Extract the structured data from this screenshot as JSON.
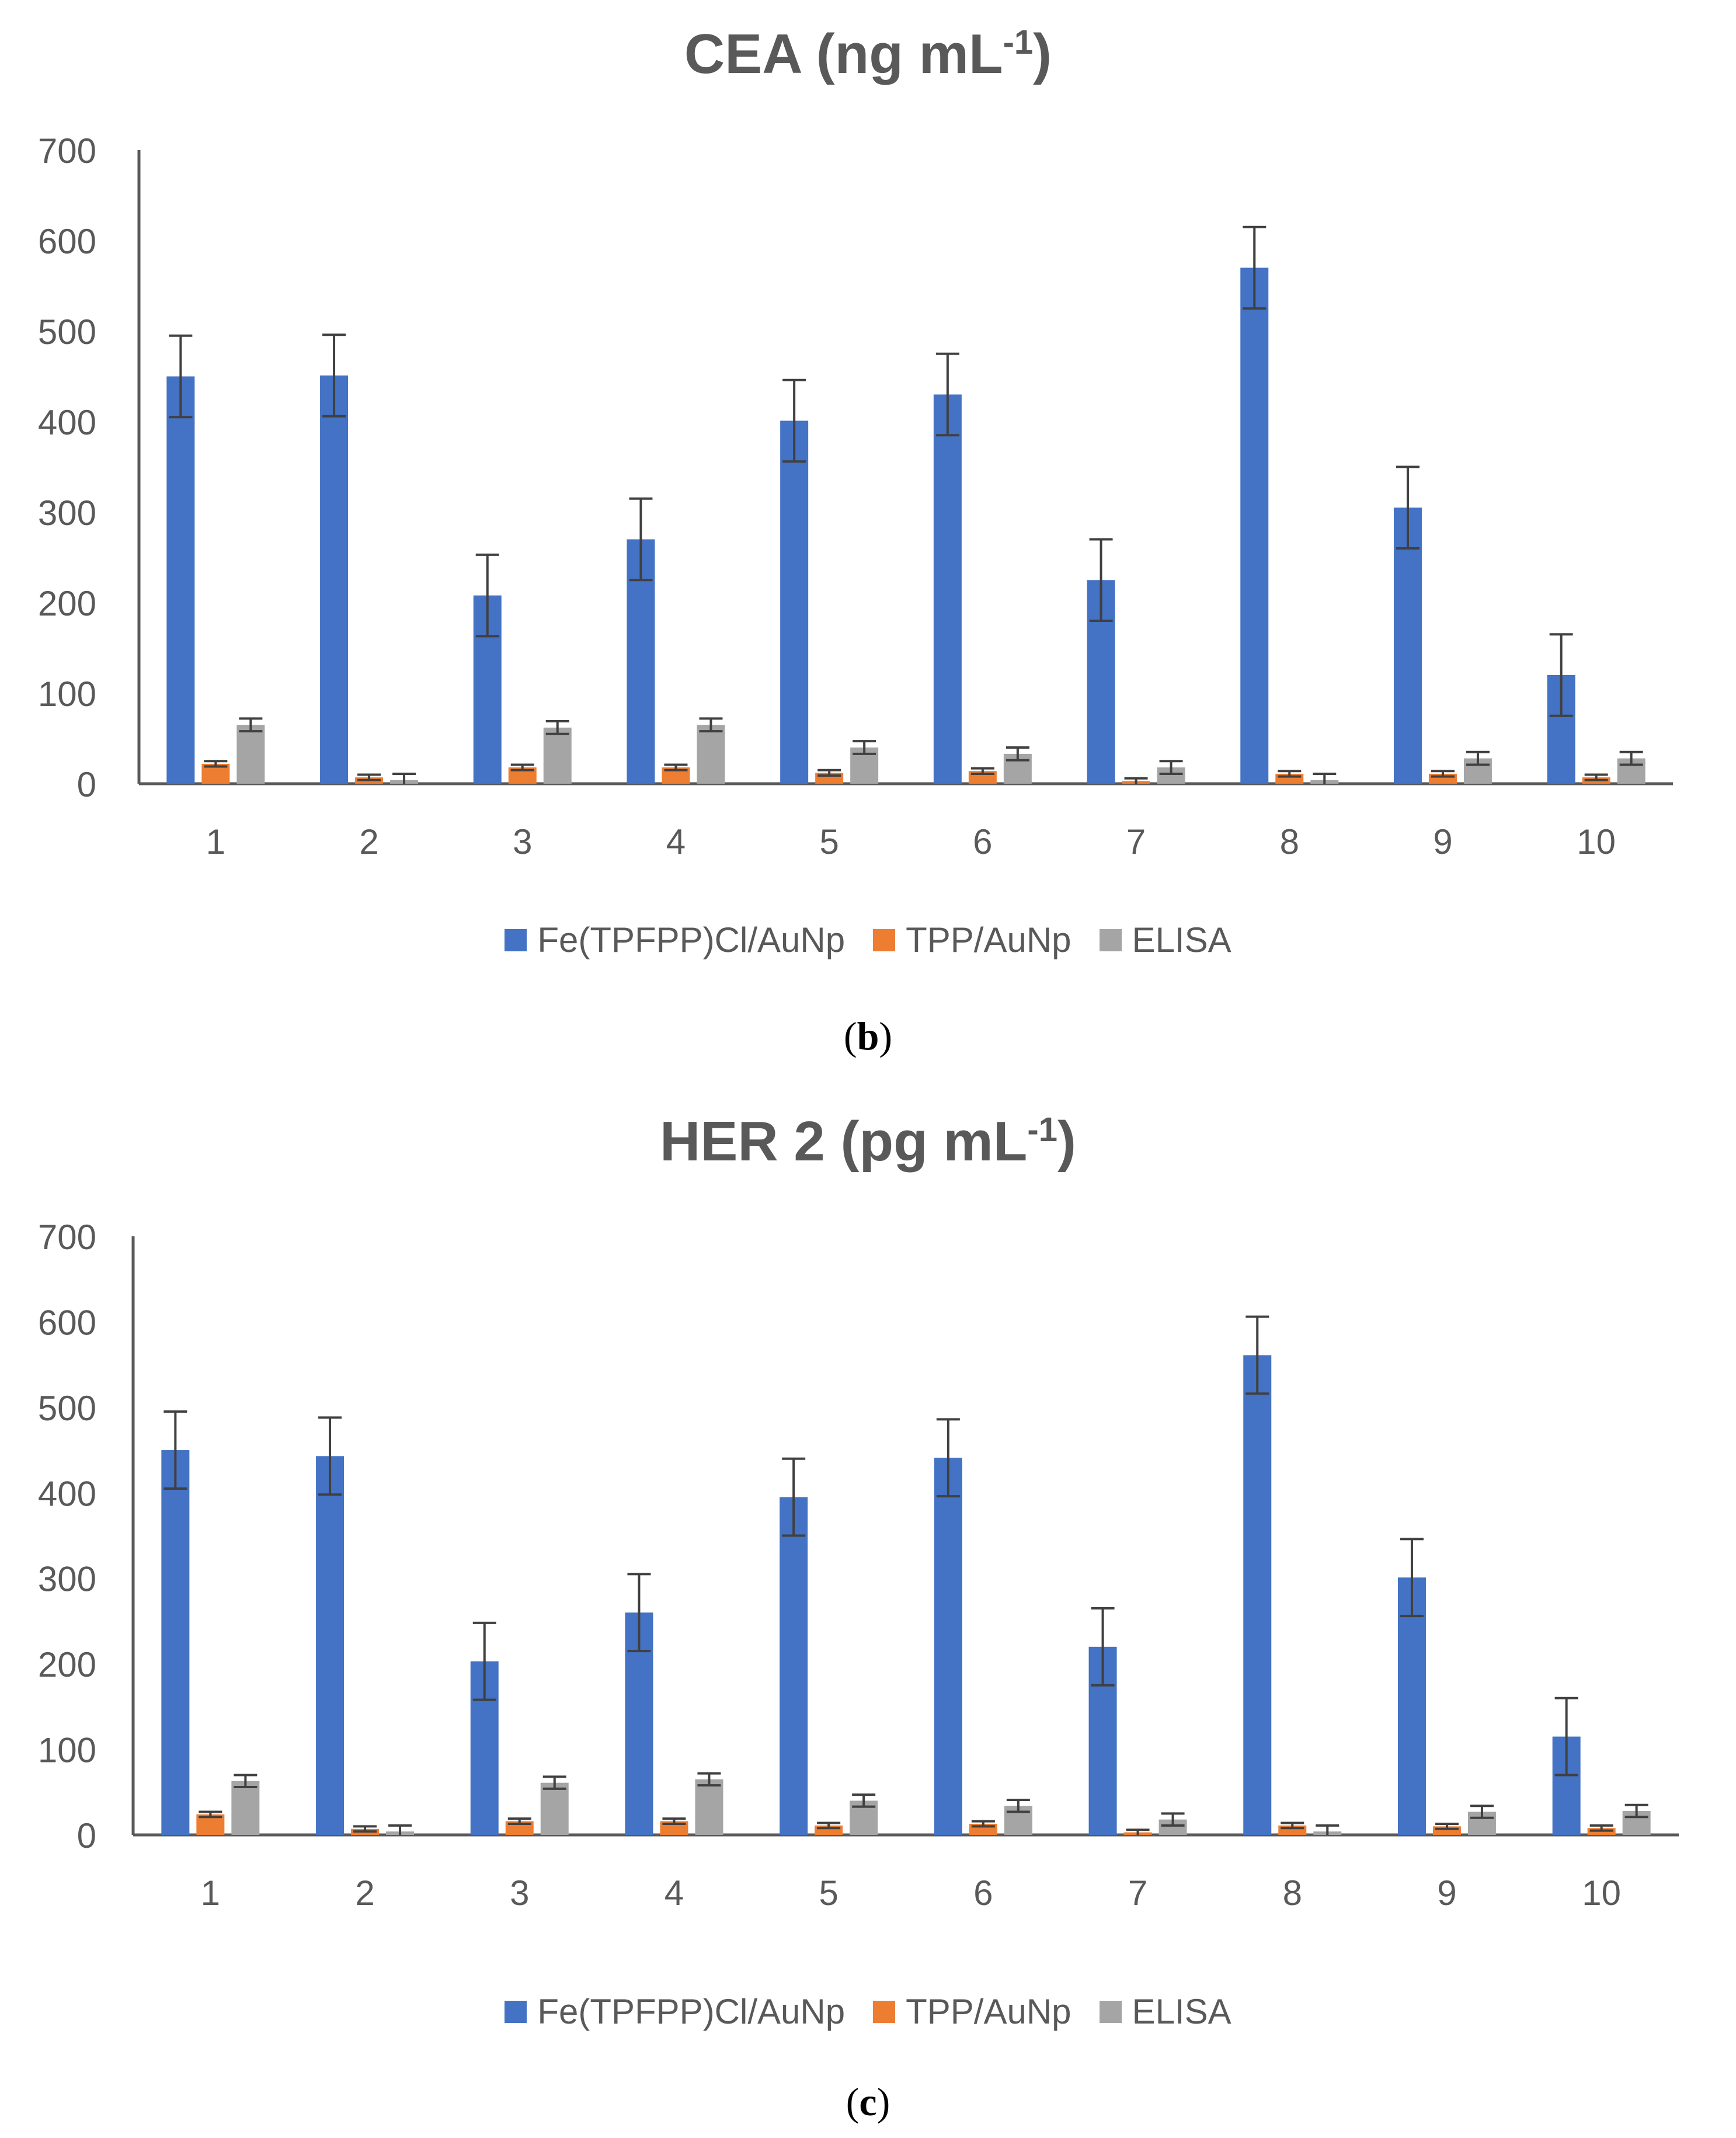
{
  "colors": {
    "fe": "#4472C4",
    "tpp": "#ED7D31",
    "elisa": "#A5A5A5",
    "axis": "#595959",
    "error": "#404040"
  },
  "legend": {
    "fe": "Fe(TPFPP)Cl/AuNp",
    "tpp": "TPP/AuNp",
    "elisa": "ELISA"
  },
  "panels": {
    "b": {
      "label_open": "(",
      "label_letter": "b",
      "label_close": ")",
      "title_main": "CEA (ng mL",
      "title_sup": "-1",
      "title_end": ")"
    },
    "c": {
      "label_open": "(",
      "label_letter": "c",
      "label_close": ")",
      "title_main": "HER 2 (pg mL",
      "title_sup": "-1",
      "title_end": ")"
    }
  },
  "chart_data": [
    {
      "type": "bar",
      "title": "CEA (ng mL-1)",
      "categories": [
        "1",
        "2",
        "3",
        "4",
        "5",
        "6",
        "7",
        "8",
        "9",
        "10"
      ],
      "ylim": [
        0,
        700
      ],
      "yticks": [
        0,
        100,
        200,
        300,
        400,
        500,
        600,
        700
      ],
      "series": [
        {
          "name": "Fe(TPFPP)Cl/AuNp",
          "values": [
            450,
            451,
            208,
            270,
            401,
            430,
            225,
            570,
            305,
            120
          ],
          "errors": [
            45,
            45,
            45,
            45,
            45,
            45,
            45,
            45,
            45,
            45
          ]
        },
        {
          "name": "TPP/AuNp",
          "values": [
            22,
            7,
            18,
            18,
            12,
            14,
            3,
            11,
            11,
            7
          ],
          "errors": [
            3,
            3,
            3,
            3,
            3,
            3,
            3,
            3,
            3,
            3
          ]
        },
        {
          "name": "ELISA",
          "values": [
            65,
            4,
            62,
            65,
            40,
            33,
            18,
            4,
            28,
            28
          ],
          "errors": [
            7,
            7,
            7,
            7,
            7,
            7,
            7,
            7,
            7,
            7
          ]
        }
      ]
    },
    {
      "type": "bar",
      "title": "HER 2 (pg mL-1)",
      "categories": [
        "1",
        "2",
        "3",
        "4",
        "5",
        "6",
        "7",
        "8",
        "9",
        "10"
      ],
      "ylim": [
        0,
        700
      ],
      "yticks": [
        0,
        100,
        200,
        300,
        400,
        500,
        600,
        700
      ],
      "series": [
        {
          "name": "Fe(TPFPP)Cl/AuNp",
          "values": [
            450,
            443,
            203,
            260,
            395,
            441,
            220,
            561,
            301,
            115
          ],
          "errors": [
            45,
            45,
            45,
            45,
            45,
            45,
            45,
            45,
            45,
            45
          ]
        },
        {
          "name": "TPP/AuNp",
          "values": [
            24,
            7,
            16,
            16,
            11,
            13,
            3,
            11,
            10,
            8
          ],
          "errors": [
            3,
            3,
            3,
            3,
            3,
            3,
            3,
            3,
            3,
            3
          ]
        },
        {
          "name": "ELISA",
          "values": [
            63,
            4,
            61,
            65,
            40,
            34,
            18,
            4,
            27,
            28
          ],
          "errors": [
            7,
            7,
            7,
            7,
            7,
            7,
            7,
            7,
            7,
            7
          ]
        }
      ]
    }
  ]
}
